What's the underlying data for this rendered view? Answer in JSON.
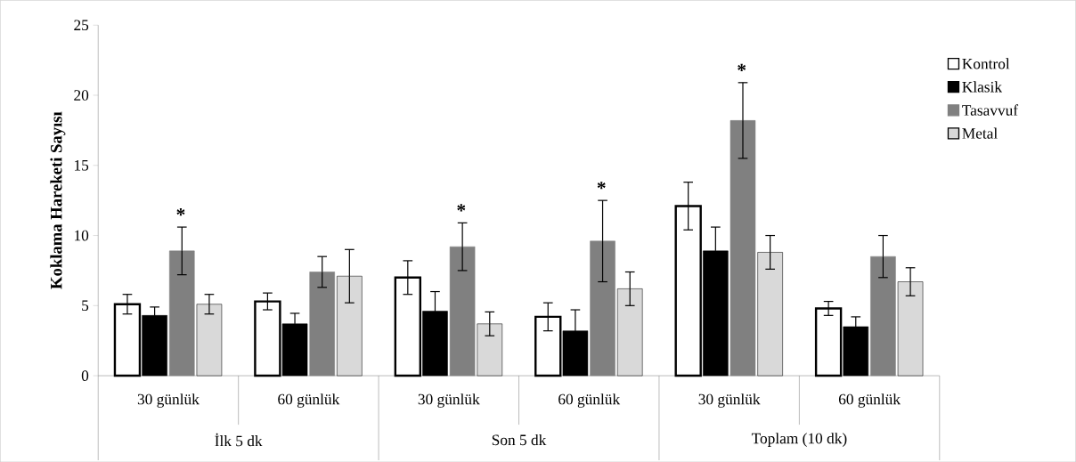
{
  "chart_data": {
    "type": "bar",
    "ylabel": "**Koklama Hareketi Sayısı**",
    "categories": [
      "30 günlük",
      "60 günlük",
      "30 günlük",
      "60 günlük",
      "30 günlük",
      "60 günlük"
    ],
    "series": [
      {
        "name": "Kontrol",
        "color": "#ffffff",
        "values": [
          5.1,
          5.3,
          7.0,
          4.2,
          12.1,
          4.8
        ],
        "errors": [
          0.7,
          0.6,
          1.2,
          1.0,
          1.7,
          0.5
        ]
      },
      {
        "name": "Klasik",
        "color": "#000000",
        "values": [
          4.3,
          3.7,
          4.6,
          3.2,
          8.9,
          3.5
        ],
        "errors": [
          0.6,
          0.75,
          1.4,
          1.5,
          1.7,
          0.7
        ]
      },
      {
        "name": "Tasavvuf",
        "color": "#808080",
        "values": [
          8.9,
          7.4,
          9.2,
          9.6,
          18.2,
          8.5
        ],
        "errors": [
          1.7,
          1.1,
          1.7,
          2.9,
          2.7,
          1.5
        ],
        "value_labels": [
          "*",
          null,
          "*",
          "*",
          "*",
          null
        ]
      },
      {
        "name": "Metal",
        "color": "#d9d9d9",
        "values": [
          5.1,
          7.1,
          3.7,
          6.2,
          8.8,
          6.7
        ],
        "errors": [
          0.7,
          1.9,
          0.85,
          1.2,
          1.2,
          1.0
        ]
      }
    ],
    "ylim": [
      0,
      25
    ],
    "yticks": [
      0,
      5,
      10,
      15,
      20,
      25
    ],
    "grid": false,
    "legend": "right",
    "annotations": [
      "İlk 5 dk",
      "Son 5 dk",
      "Toplam (10 dk)"
    ]
  }
}
